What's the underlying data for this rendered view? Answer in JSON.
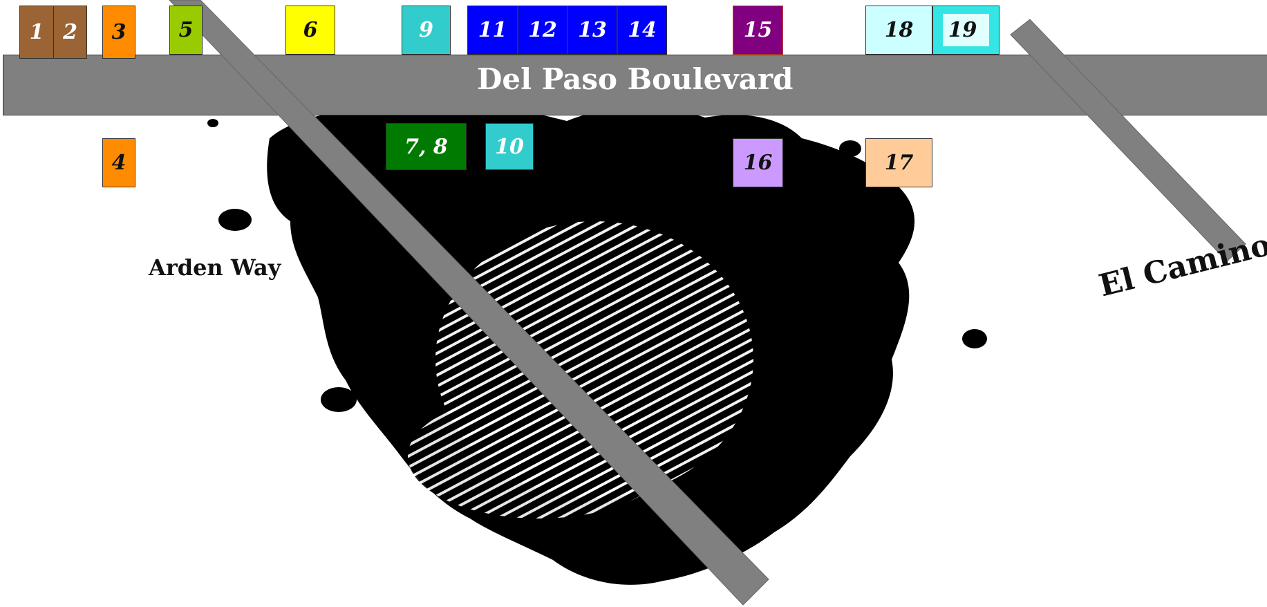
{
  "map": {
    "streets": {
      "del_paso": "Del Paso Boulevard",
      "arden": "Arden Way",
      "el_camino": "El Camino"
    },
    "colors": {
      "road": "#808080",
      "ink_blot": "#000000",
      "background": "#ffffff"
    },
    "decor": {
      "center": "fingerprint-ink-splat"
    },
    "lots": [
      {
        "id": "lot-1",
        "label": "1",
        "fill": "#9a6434",
        "text": "#ffffff"
      },
      {
        "id": "lot-2",
        "label": "2",
        "fill": "#9a6434",
        "text": "#ffffff"
      },
      {
        "id": "lot-3",
        "label": "3",
        "fill": "#ff8c00",
        "text": "#111111"
      },
      {
        "id": "lot-4",
        "label": "4",
        "fill": "#ff8c00",
        "text": "#111111"
      },
      {
        "id": "lot-5",
        "label": "5",
        "fill": "#99cc00",
        "text": "#111111"
      },
      {
        "id": "lot-6",
        "label": "6",
        "fill": "#ffff00",
        "text": "#111111"
      },
      {
        "id": "lot-7-8",
        "label": "7, 8",
        "fill": "#007a00",
        "text": "#ffffff"
      },
      {
        "id": "lot-9",
        "label": "9",
        "fill": "#33cccc",
        "text": "#ffffff"
      },
      {
        "id": "lot-10",
        "label": "10",
        "fill": "#33cccc",
        "text": "#ffffff"
      },
      {
        "id": "lot-11",
        "label": "11",
        "fill": "#0000ff",
        "text": "#ffffff"
      },
      {
        "id": "lot-12",
        "label": "12",
        "fill": "#0000ff",
        "text": "#ffffff"
      },
      {
        "id": "lot-13",
        "label": "13",
        "fill": "#0000ff",
        "text": "#ffffff"
      },
      {
        "id": "lot-14",
        "label": "14",
        "fill": "#0000ff",
        "text": "#ffffff"
      },
      {
        "id": "lot-15",
        "label": "15",
        "fill": "#800080",
        "text": "#ffffff"
      },
      {
        "id": "lot-16",
        "label": "16",
        "fill": "#cc99ff",
        "text": "#111111"
      },
      {
        "id": "lot-17",
        "label": "17",
        "fill": "#ffcc99",
        "text": "#111111"
      },
      {
        "id": "lot-18",
        "label": "18",
        "fill": "#ccffff",
        "text": "#111111"
      },
      {
        "id": "lot-19",
        "label": "19",
        "fill": "#33e5e5",
        "text": "#111111"
      }
    ]
  }
}
